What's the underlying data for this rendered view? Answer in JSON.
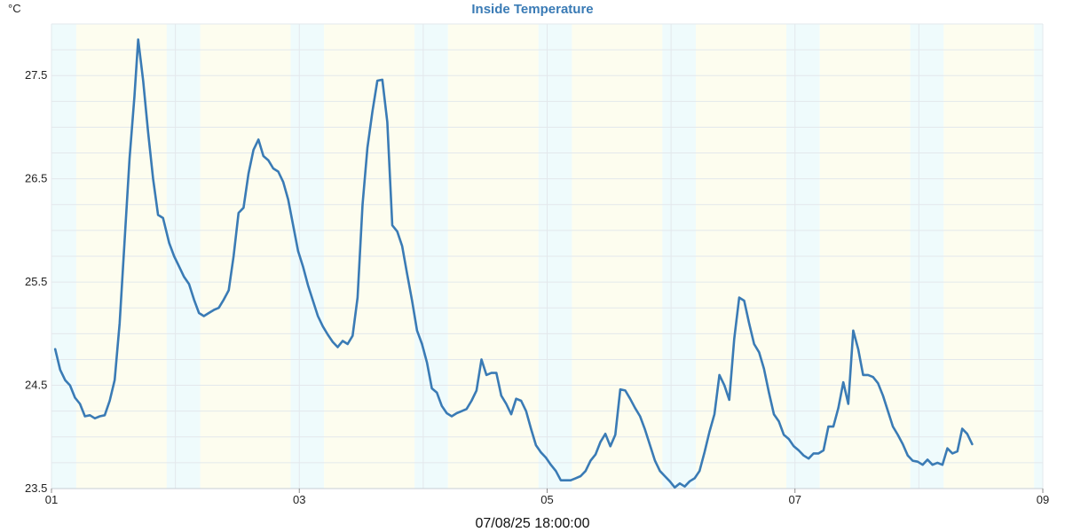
{
  "chart_data": {
    "type": "line",
    "title": "Inside Temperature",
    "ylabel": "°C",
    "timestamp": "07/08/25 18:00:00",
    "ylim": [
      23.5,
      28.0
    ],
    "xlim": [
      0,
      8.0
    ],
    "yticks": [
      23.5,
      24.5,
      25.5,
      26.5,
      27.5
    ],
    "xticks": [
      {
        "x": 0,
        "label": "01"
      },
      {
        "x": 2,
        "label": "03"
      },
      {
        "x": 4,
        "label": "05"
      },
      {
        "x": 6,
        "label": "07"
      },
      {
        "x": 8,
        "label": "09"
      }
    ],
    "grid": true,
    "colors": {
      "line": "#3a7bb5",
      "title": "#3a7bb5",
      "night": "#effbfc",
      "day": "#fdfdef",
      "grid": "#e3e8ec"
    },
    "bands": [
      {
        "start": 0.0,
        "end": 0.2,
        "kind": "night"
      },
      {
        "start": 0.2,
        "end": 0.93,
        "kind": "day"
      },
      {
        "start": 0.93,
        "end": 1.2,
        "kind": "night"
      },
      {
        "start": 1.2,
        "end": 1.93,
        "kind": "day"
      },
      {
        "start": 1.93,
        "end": 2.2,
        "kind": "night"
      },
      {
        "start": 2.2,
        "end": 2.93,
        "kind": "day"
      },
      {
        "start": 2.93,
        "end": 3.2,
        "kind": "night"
      },
      {
        "start": 3.2,
        "end": 3.93,
        "kind": "day"
      },
      {
        "start": 3.93,
        "end": 4.2,
        "kind": "night"
      },
      {
        "start": 4.2,
        "end": 4.93,
        "kind": "day"
      },
      {
        "start": 4.93,
        "end": 5.2,
        "kind": "night"
      },
      {
        "start": 5.2,
        "end": 5.93,
        "kind": "day"
      },
      {
        "start": 5.93,
        "end": 6.2,
        "kind": "night"
      },
      {
        "start": 6.2,
        "end": 6.93,
        "kind": "day"
      },
      {
        "start": 6.93,
        "end": 7.2,
        "kind": "night"
      },
      {
        "start": 7.2,
        "end": 7.93,
        "kind": "day"
      },
      {
        "start": 7.93,
        "end": 8.0,
        "kind": "night"
      }
    ],
    "series": [
      {
        "values": [
          [
            0.03,
            24.85
          ],
          [
            0.07,
            24.65
          ],
          [
            0.11,
            24.55
          ],
          [
            0.15,
            24.5
          ],
          [
            0.19,
            24.38
          ],
          [
            0.23,
            24.32
          ],
          [
            0.27,
            24.2
          ],
          [
            0.31,
            24.21
          ],
          [
            0.35,
            24.18
          ],
          [
            0.39,
            24.2
          ],
          [
            0.43,
            24.21
          ],
          [
            0.47,
            24.35
          ],
          [
            0.51,
            24.55
          ],
          [
            0.55,
            25.1
          ],
          [
            0.59,
            25.9
          ],
          [
            0.63,
            26.7
          ],
          [
            0.67,
            27.3
          ],
          [
            0.7,
            27.85
          ],
          [
            0.74,
            27.45
          ],
          [
            0.78,
            26.95
          ],
          [
            0.82,
            26.5
          ],
          [
            0.86,
            26.15
          ],
          [
            0.9,
            26.12
          ],
          [
            0.95,
            25.88
          ],
          [
            0.99,
            25.75
          ],
          [
            1.03,
            25.65
          ],
          [
            1.07,
            25.55
          ],
          [
            1.11,
            25.48
          ],
          [
            1.15,
            25.33
          ],
          [
            1.19,
            25.2
          ],
          [
            1.23,
            25.17
          ],
          [
            1.27,
            25.2
          ],
          [
            1.31,
            25.23
          ],
          [
            1.35,
            25.25
          ],
          [
            1.39,
            25.33
          ],
          [
            1.43,
            25.42
          ],
          [
            1.47,
            25.75
          ],
          [
            1.51,
            26.17
          ],
          [
            1.55,
            26.22
          ],
          [
            1.59,
            26.55
          ],
          [
            1.63,
            26.78
          ],
          [
            1.67,
            26.88
          ],
          [
            1.71,
            26.72
          ],
          [
            1.75,
            26.68
          ],
          [
            1.79,
            26.6
          ],
          [
            1.83,
            26.57
          ],
          [
            1.87,
            26.47
          ],
          [
            1.91,
            26.3
          ],
          [
            1.95,
            26.05
          ],
          [
            1.99,
            25.8
          ],
          [
            2.03,
            25.65
          ],
          [
            2.07,
            25.47
          ],
          [
            2.11,
            25.32
          ],
          [
            2.15,
            25.17
          ],
          [
            2.19,
            25.07
          ],
          [
            2.23,
            24.99
          ],
          [
            2.27,
            24.92
          ],
          [
            2.31,
            24.87
          ],
          [
            2.35,
            24.93
          ],
          [
            2.39,
            24.9
          ],
          [
            2.43,
            24.98
          ],
          [
            2.47,
            25.35
          ],
          [
            2.51,
            26.25
          ],
          [
            2.55,
            26.8
          ],
          [
            2.59,
            27.15
          ],
          [
            2.63,
            27.45
          ],
          [
            2.67,
            27.46
          ],
          [
            2.71,
            27.05
          ],
          [
            2.75,
            26.05
          ],
          [
            2.79,
            25.99
          ],
          [
            2.83,
            25.85
          ],
          [
            2.87,
            25.58
          ],
          [
            2.91,
            25.32
          ],
          [
            2.95,
            25.03
          ],
          [
            2.99,
            24.9
          ],
          [
            3.03,
            24.72
          ],
          [
            3.07,
            24.47
          ],
          [
            3.11,
            24.43
          ],
          [
            3.15,
            24.3
          ],
          [
            3.19,
            24.23
          ],
          [
            3.23,
            24.2
          ],
          [
            3.27,
            24.23
          ],
          [
            3.31,
            24.25
          ],
          [
            3.35,
            24.27
          ],
          [
            3.39,
            24.35
          ],
          [
            3.43,
            24.45
          ],
          [
            3.47,
            24.75
          ],
          [
            3.51,
            24.6
          ],
          [
            3.55,
            24.62
          ],
          [
            3.59,
            24.62
          ],
          [
            3.63,
            24.4
          ],
          [
            3.67,
            24.32
          ],
          [
            3.71,
            24.22
          ],
          [
            3.75,
            24.37
          ],
          [
            3.79,
            24.35
          ],
          [
            3.83,
            24.25
          ],
          [
            3.87,
            24.08
          ],
          [
            3.91,
            23.92
          ],
          [
            3.95,
            23.85
          ],
          [
            3.99,
            23.8
          ],
          [
            4.03,
            23.73
          ],
          [
            4.07,
            23.67
          ],
          [
            4.11,
            23.58
          ],
          [
            4.15,
            23.58
          ],
          [
            4.19,
            23.58
          ],
          [
            4.23,
            23.6
          ],
          [
            4.27,
            23.62
          ],
          [
            4.31,
            23.67
          ],
          [
            4.35,
            23.77
          ],
          [
            4.39,
            23.83
          ],
          [
            4.43,
            23.95
          ],
          [
            4.47,
            24.03
          ],
          [
            4.51,
            23.91
          ],
          [
            4.55,
            24.02
          ],
          [
            4.59,
            24.46
          ],
          [
            4.63,
            24.45
          ],
          [
            4.67,
            24.37
          ],
          [
            4.71,
            24.28
          ],
          [
            4.75,
            24.2
          ],
          [
            4.79,
            24.07
          ],
          [
            4.83,
            23.92
          ],
          [
            4.87,
            23.77
          ],
          [
            4.91,
            23.67
          ],
          [
            4.95,
            23.62
          ],
          [
            4.99,
            23.57
          ],
          [
            5.03,
            23.51
          ],
          [
            5.07,
            23.55
          ],
          [
            5.11,
            23.52
          ],
          [
            5.15,
            23.57
          ],
          [
            5.19,
            23.6
          ],
          [
            5.23,
            23.67
          ],
          [
            5.27,
            23.85
          ],
          [
            5.31,
            24.05
          ],
          [
            5.35,
            24.22
          ],
          [
            5.39,
            24.6
          ],
          [
            5.43,
            24.5
          ],
          [
            5.47,
            24.36
          ],
          [
            5.51,
            24.95
          ],
          [
            5.55,
            25.35
          ],
          [
            5.59,
            25.32
          ],
          [
            5.63,
            25.1
          ],
          [
            5.67,
            24.9
          ],
          [
            5.71,
            24.82
          ],
          [
            5.75,
            24.66
          ],
          [
            5.79,
            24.43
          ],
          [
            5.83,
            24.22
          ],
          [
            5.87,
            24.15
          ],
          [
            5.91,
            24.02
          ],
          [
            5.95,
            23.98
          ],
          [
            5.99,
            23.91
          ],
          [
            6.03,
            23.87
          ],
          [
            6.07,
            23.82
          ],
          [
            6.11,
            23.79
          ],
          [
            6.15,
            23.84
          ],
          [
            6.19,
            23.84
          ],
          [
            6.23,
            23.87
          ],
          [
            6.27,
            24.1
          ],
          [
            6.31,
            24.1
          ],
          [
            6.35,
            24.28
          ],
          [
            6.39,
            24.53
          ],
          [
            6.43,
            24.32
          ],
          [
            6.47,
            25.03
          ],
          [
            6.51,
            24.85
          ],
          [
            6.55,
            24.6
          ],
          [
            6.59,
            24.6
          ],
          [
            6.63,
            24.58
          ],
          [
            6.67,
            24.52
          ],
          [
            6.71,
            24.4
          ],
          [
            6.75,
            24.25
          ],
          [
            6.79,
            24.1
          ],
          [
            6.83,
            24.02
          ],
          [
            6.87,
            23.93
          ],
          [
            6.91,
            23.82
          ],
          [
            6.95,
            23.77
          ],
          [
            6.99,
            23.76
          ],
          [
            7.03,
            23.73
          ],
          [
            7.07,
            23.78
          ],
          [
            7.11,
            23.73
          ],
          [
            7.15,
            23.75
          ],
          [
            7.19,
            23.73
          ],
          [
            7.23,
            23.89
          ],
          [
            7.27,
            23.84
          ],
          [
            7.31,
            23.86
          ],
          [
            7.35,
            24.08
          ],
          [
            7.39,
            24.03
          ],
          [
            7.43,
            23.93
          ]
        ]
      }
    ]
  }
}
